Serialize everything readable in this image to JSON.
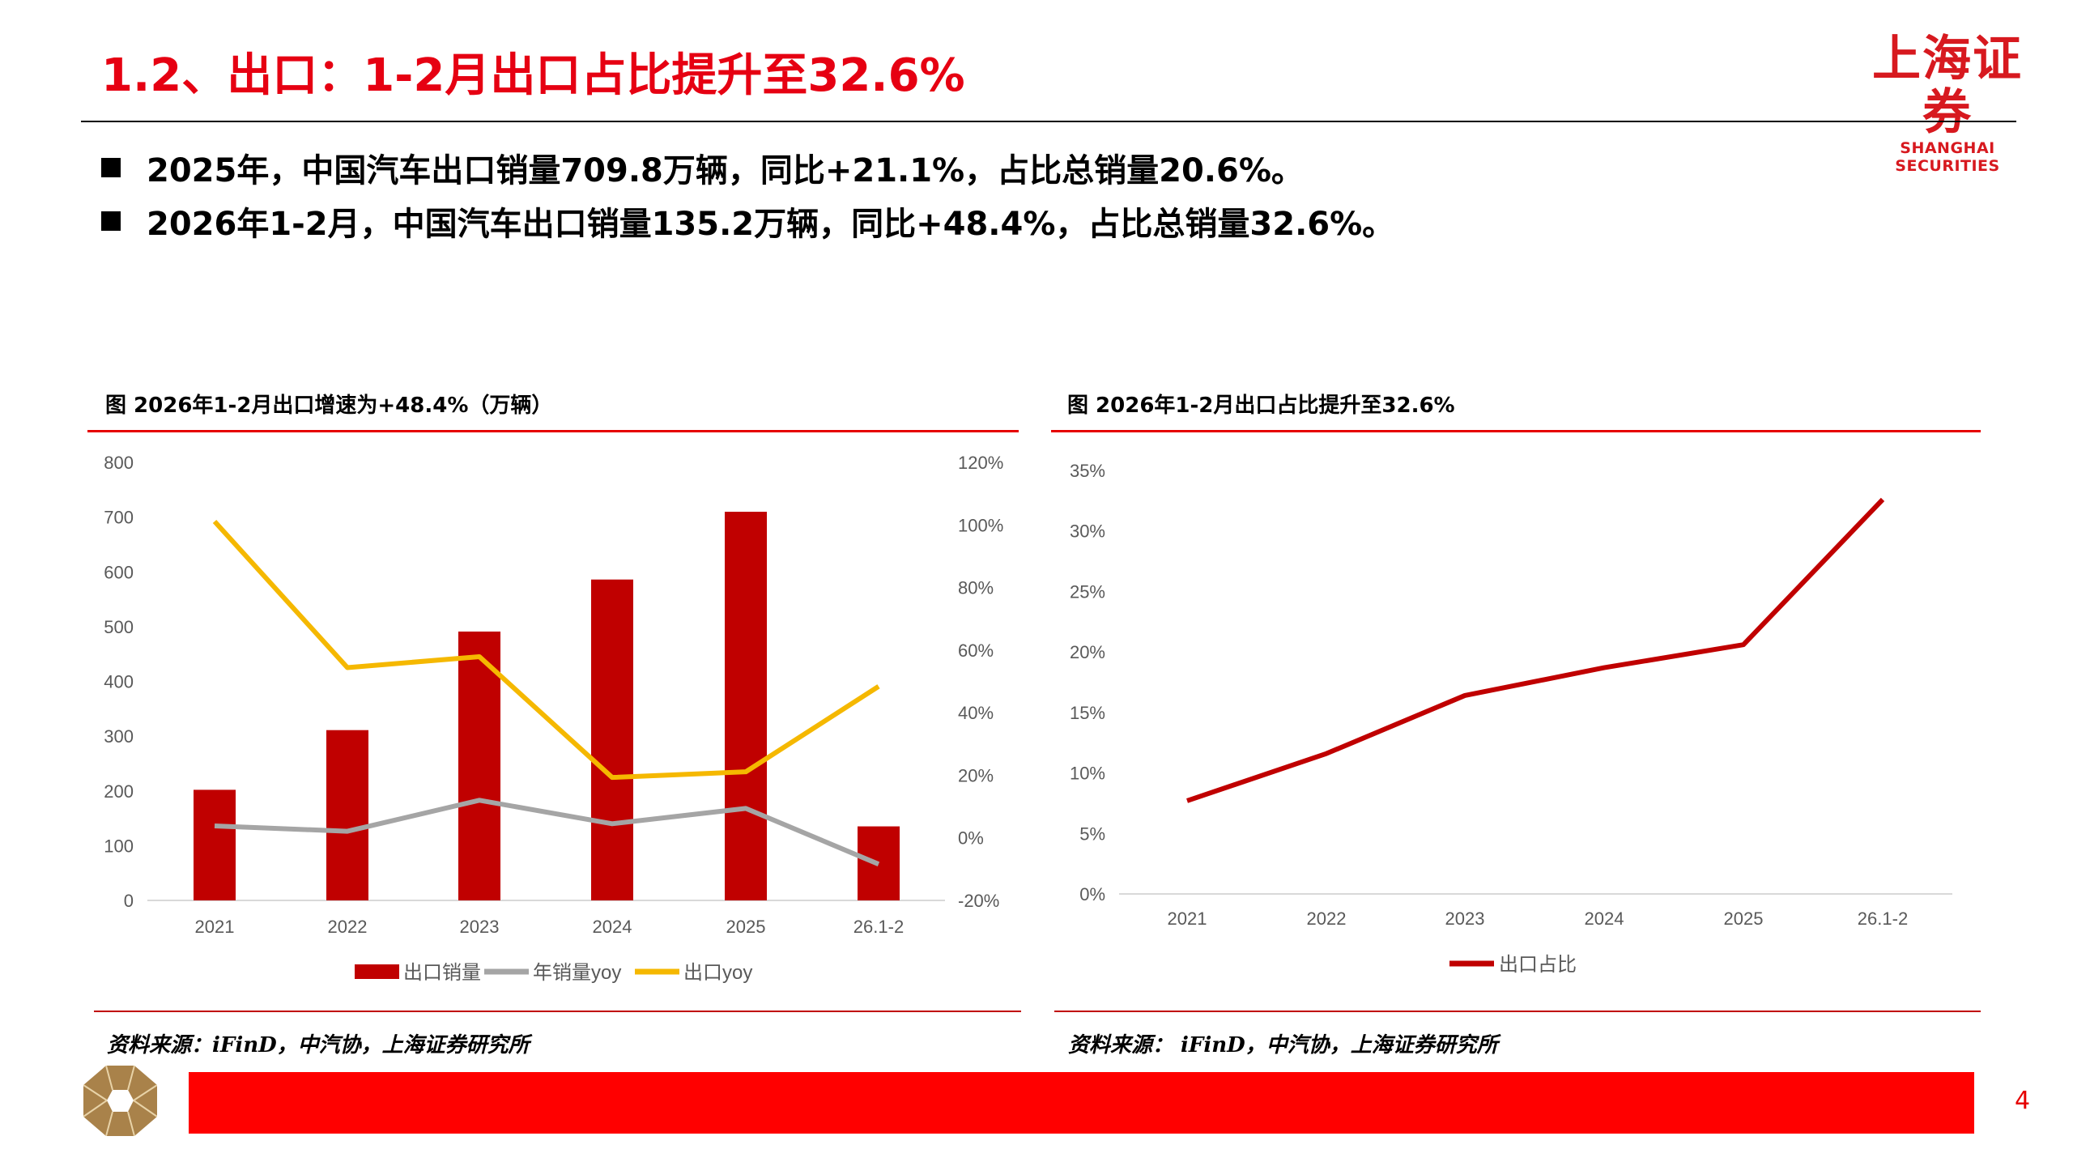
{
  "header": {
    "title": "1.2、出口：1-2月出口占比提升至32.6%",
    "logo_cn": "上海证券",
    "logo_en": "SHANGHAI SECURITIES"
  },
  "bullets": [
    "2025年，中国汽车出口销量709.8万辆，同比+21.1%，占比总销量20.6%。",
    "2026年1-2月，中国汽车出口销量135.2万辆，同比+48.4%，占比总销量32.6%。"
  ],
  "charts": {
    "left_title": "图  2026年1-2月出口增速为+48.4%（万辆）",
    "right_title": "图  2026年1-2月出口占比提升至32.6%",
    "left_source": "资料来源：iFinD，中汽协，上海证券研究所",
    "right_source": "资料来源： iFinD，中汽协，上海证券研究所"
  },
  "page_number": "4",
  "colors": {
    "brand_red": "#e60012",
    "bar_red": "#c00000",
    "gray": "#a5a5a5",
    "yellow": "#f5b800",
    "footer_red": "#ff0000",
    "logo_gold": "#a9824a"
  },
  "chart_data": [
    {
      "type": "bar+line",
      "categories": [
        "2021",
        "2022",
        "2023",
        "2024",
        "2025",
        "26.1-2"
      ],
      "y_left": {
        "ticks": [
          "0",
          "100",
          "200",
          "300",
          "400",
          "500",
          "600",
          "700",
          "800"
        ],
        "range": [
          0,
          800
        ]
      },
      "y_right": {
        "ticks": [
          "-20%",
          "0%",
          "20%",
          "40%",
          "60%",
          "80%",
          "100%",
          "120%"
        ],
        "range": [
          -20,
          120
        ]
      },
      "series": [
        {
          "name": "出口销量",
          "kind": "bar",
          "axis": "left",
          "color": "#c00000",
          "values": [
            202,
            311,
            491,
            586,
            709.8,
            135.2
          ]
        },
        {
          "name": "年销量yoy",
          "kind": "line",
          "axis": "right",
          "color": "#a5a5a5",
          "values": [
            3.8,
            2.1,
            12.0,
            4.5,
            9.4,
            -8.4
          ]
        },
        {
          "name": "出口yoy",
          "kind": "line",
          "axis": "right",
          "color": "#f5b800",
          "values": [
            101.1,
            54.4,
            57.9,
            19.3,
            21.1,
            48.4
          ]
        }
      ],
      "legend": "bottom",
      "grid": false
    },
    {
      "type": "line",
      "categories": [
        "2021",
        "2022",
        "2023",
        "2024",
        "2025",
        "26.1-2"
      ],
      "y": {
        "ticks": [
          "0%",
          "5%",
          "10%",
          "15%",
          "20%",
          "25%",
          "30%",
          "35%"
        ],
        "range": [
          0,
          35
        ]
      },
      "series": [
        {
          "name": "出口占比",
          "color": "#c00000",
          "values": [
            7.7,
            11.6,
            16.4,
            18.7,
            20.6,
            32.6
          ]
        }
      ],
      "legend": "bottom",
      "grid": false
    }
  ]
}
